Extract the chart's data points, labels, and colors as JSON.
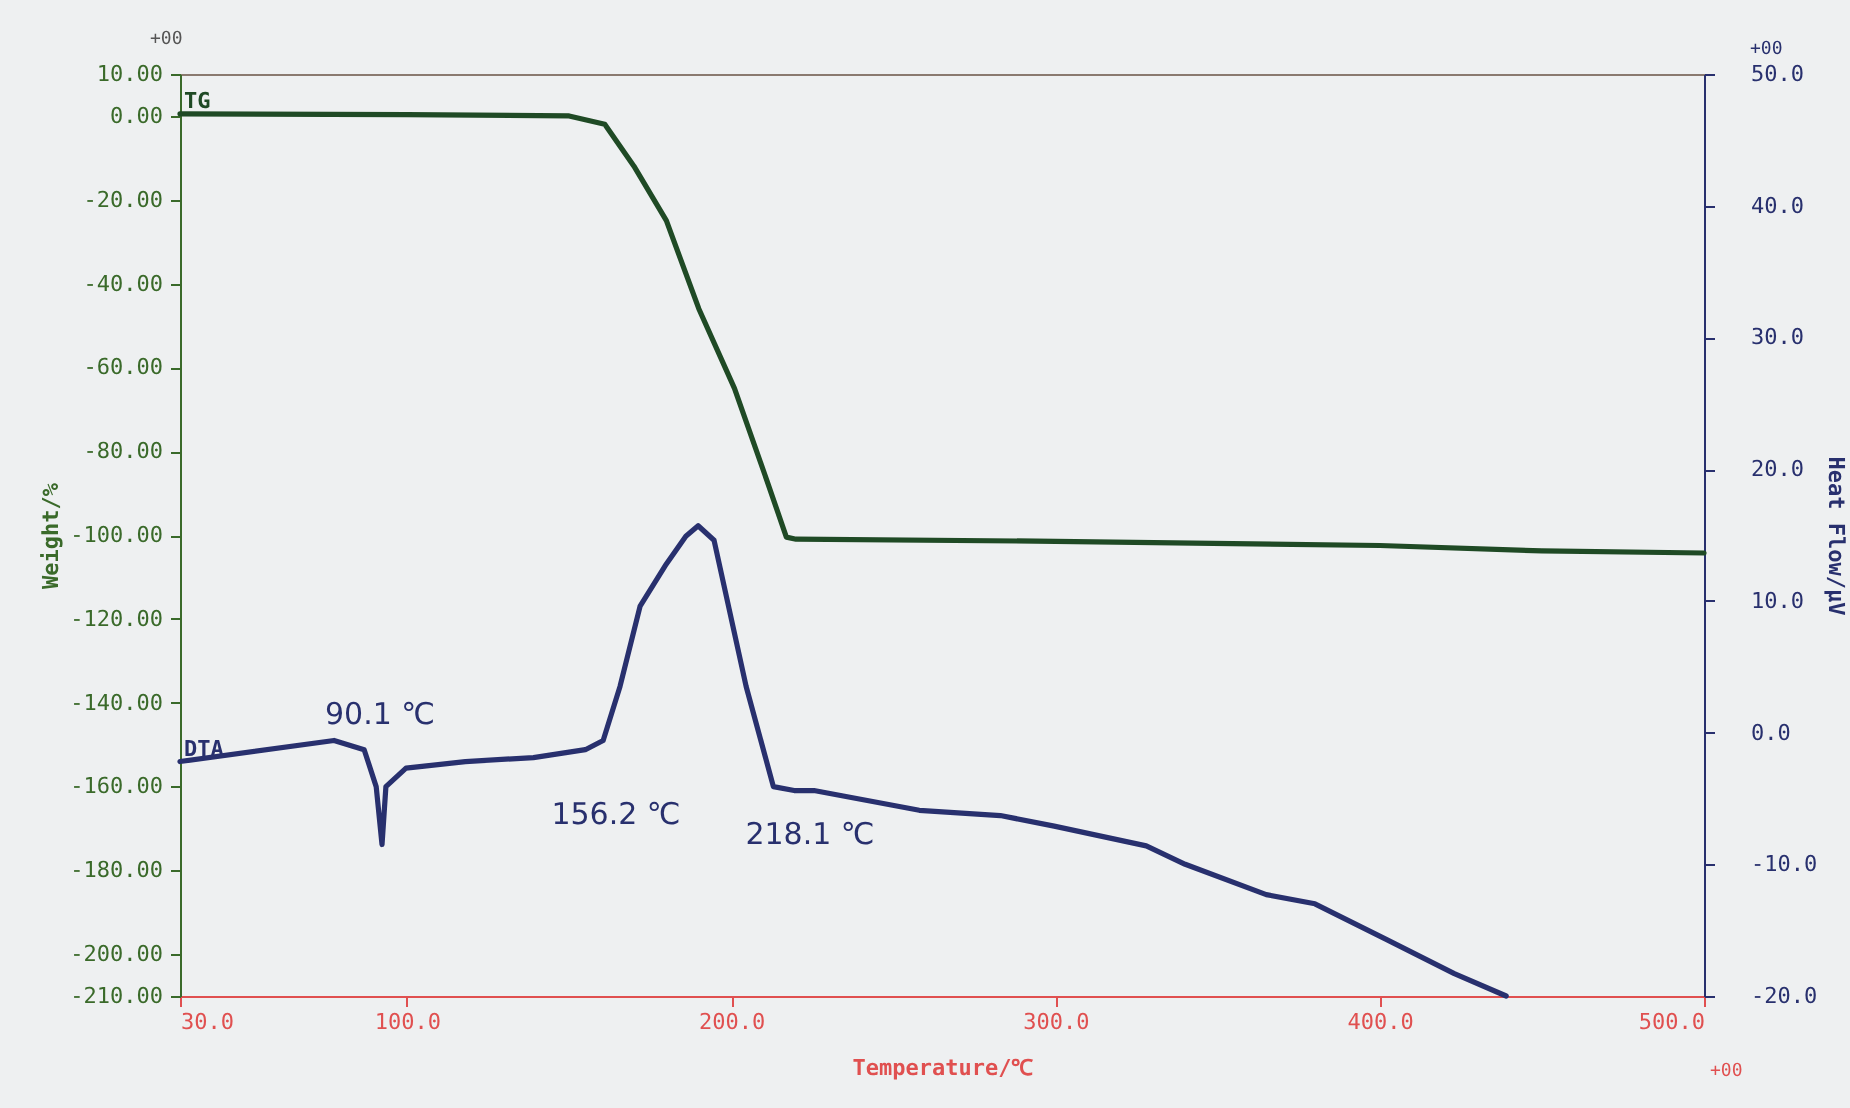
{
  "chart_data": {
    "type": "line",
    "xlabel": "Temperature/℃",
    "ylabel": "Weight/%",
    "y2label": "Heat Flow/μV",
    "xlim": [
      30,
      500
    ],
    "xticks": [
      {
        "value": 30,
        "label": "30.0"
      },
      {
        "value": 100,
        "label": "100.0"
      },
      {
        "value": 200,
        "label": "200.0"
      },
      {
        "value": 300,
        "label": "300.0"
      },
      {
        "value": 400,
        "label": "400.0"
      },
      {
        "value": 500,
        "label": "500.0"
      }
    ],
    "ylim": [
      -210,
      10
    ],
    "yticks": [
      {
        "value": 10,
        "label": "10.00"
      },
      {
        "value": 0,
        "label": "0.00"
      },
      {
        "value": -20,
        "label": "-20.00"
      },
      {
        "value": -40,
        "label": "-40.00"
      },
      {
        "value": -60,
        "label": "-60.00"
      },
      {
        "value": -80,
        "label": "-80.00"
      },
      {
        "value": -100,
        "label": "-100.00"
      },
      {
        "value": -120,
        "label": "-120.00"
      },
      {
        "value": -140,
        "label": "-140.00"
      },
      {
        "value": -160,
        "label": "-160.00"
      },
      {
        "value": -180,
        "label": "-180.00"
      },
      {
        "value": -200,
        "label": "-200.00"
      },
      {
        "value": -210,
        "label": "-210.00"
      }
    ],
    "y2lim": [
      -20,
      50
    ],
    "y2ticks": [
      {
        "value": 50,
        "label": "50.0"
      },
      {
        "value": 40,
        "label": "40.0"
      },
      {
        "value": 30,
        "label": "30.0"
      },
      {
        "value": 20,
        "label": "20.0"
      },
      {
        "value": 10,
        "label": "10.0"
      },
      {
        "value": 0,
        "label": "0.0"
      },
      {
        "value": -10,
        "label": "-10.0"
      },
      {
        "value": -20,
        "label": "-20.0"
      }
    ],
    "grid": false,
    "line_style": "solid",
    "marker": "none",
    "series": [
      {
        "name": "TG",
        "color": "#1f4a25",
        "x": [
          30,
          100,
          150,
          161,
          170,
          180,
          190,
          201,
          211,
          217,
          220,
          300,
          400,
          450,
          500
        ],
        "values": [
          0.5,
          0.3,
          0,
          -2,
          -12,
          -25,
          -46,
          -65,
          -87,
          -100.5,
          -101,
          -101.5,
          -102.5,
          -103.8,
          -104.3
        ]
      },
      {
        "name": "DTA",
        "color": "#28306e",
        "axis": "y2",
        "x": [
          30,
          77.5,
          86.8,
          90.5,
          92.3,
          93.5,
          99.7,
          118,
          139,
          155,
          160.5,
          165.7,
          171.9,
          180,
          186,
          189.8,
          194.7,
          204.6,
          213,
          219.4,
          225.5,
          258,
          283,
          299.6,
          328,
          340,
          365,
          380,
          402,
          423,
          439
        ],
        "values": [
          -2.2,
          -0.6,
          -1.3,
          -4.1,
          -8.5,
          -4.1,
          -2.7,
          -2.2,
          -1.9,
          -1.3,
          -0.6,
          3.5,
          9.6,
          12.8,
          14.9,
          15.7,
          14.6,
          3.5,
          -4.1,
          -4.4,
          -4.4,
          -5.9,
          -6.3,
          -7.1,
          -8.6,
          -10,
          -12.3,
          -13,
          -15.7,
          -18.3,
          -20
        ]
      }
    ],
    "annotations": [
      "90.1 ℃",
      "156.2 ℃",
      "218.1 ℃",
      "+00",
      "+00",
      "+00"
    ]
  }
}
